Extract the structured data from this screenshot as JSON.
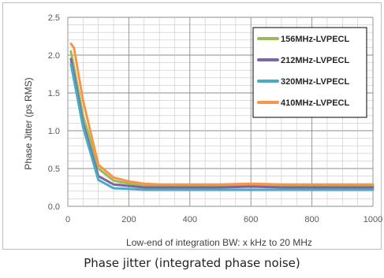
{
  "caption": "Phase jitter (integrated phase noise)",
  "chart_data": {
    "type": "line",
    "xlabel": "Low-end of integration BW: x kHz to 20 MHz",
    "ylabel": "Phase Jitter (ps RMS)",
    "xlim": [
      0,
      1000
    ],
    "ylim": [
      0,
      2.5
    ],
    "x_ticks": [
      "0",
      "200",
      "400",
      "600",
      "800",
      "1000"
    ],
    "y_ticks": [
      "0.0",
      "0.5",
      "1.0",
      "1.5",
      "2.0",
      "2.5"
    ],
    "grid": true,
    "legend_position": "top-right",
    "series": [
      {
        "name": "156MHz-LVPECL",
        "color": "#9bbb59",
        "points": [
          [
            10,
            2.05
          ],
          [
            20,
            1.85
          ],
          [
            50,
            1.2
          ],
          [
            100,
            0.5
          ],
          [
            150,
            0.34
          ],
          [
            200,
            0.3
          ],
          [
            250,
            0.27
          ],
          [
            300,
            0.27
          ],
          [
            400,
            0.27
          ],
          [
            500,
            0.27
          ],
          [
            600,
            0.28
          ],
          [
            700,
            0.27
          ],
          [
            800,
            0.27
          ],
          [
            900,
            0.27
          ],
          [
            1000,
            0.27
          ]
        ]
      },
      {
        "name": "212MHz-LVPECL",
        "color": "#8064a2",
        "points": [
          [
            10,
            1.95
          ],
          [
            20,
            1.75
          ],
          [
            50,
            1.1
          ],
          [
            100,
            0.4
          ],
          [
            150,
            0.29
          ],
          [
            200,
            0.27
          ],
          [
            250,
            0.25
          ],
          [
            300,
            0.25
          ],
          [
            400,
            0.25
          ],
          [
            500,
            0.25
          ],
          [
            600,
            0.26
          ],
          [
            700,
            0.25
          ],
          [
            800,
            0.25
          ],
          [
            900,
            0.25
          ],
          [
            1000,
            0.25
          ]
        ]
      },
      {
        "name": "320MHz-LVPECL",
        "color": "#4bacc6",
        "points": [
          [
            10,
            1.88
          ],
          [
            20,
            1.68
          ],
          [
            50,
            1.05
          ],
          [
            100,
            0.35
          ],
          [
            150,
            0.24
          ],
          [
            200,
            0.23
          ],
          [
            250,
            0.22
          ],
          [
            300,
            0.22
          ],
          [
            400,
            0.22
          ],
          [
            500,
            0.22
          ],
          [
            600,
            0.22
          ],
          [
            700,
            0.22
          ],
          [
            800,
            0.22
          ],
          [
            900,
            0.22
          ],
          [
            1000,
            0.22
          ]
        ]
      },
      {
        "name": "410MHz-LVPECL",
        "color": "#f79646",
        "points": [
          [
            10,
            2.15
          ],
          [
            20,
            2.1
          ],
          [
            50,
            1.4
          ],
          [
            100,
            0.55
          ],
          [
            150,
            0.38
          ],
          [
            200,
            0.33
          ],
          [
            250,
            0.3
          ],
          [
            300,
            0.29
          ],
          [
            400,
            0.29
          ],
          [
            500,
            0.29
          ],
          [
            600,
            0.3
          ],
          [
            700,
            0.29
          ],
          [
            800,
            0.29
          ],
          [
            900,
            0.29
          ],
          [
            1000,
            0.29
          ]
        ]
      }
    ]
  }
}
